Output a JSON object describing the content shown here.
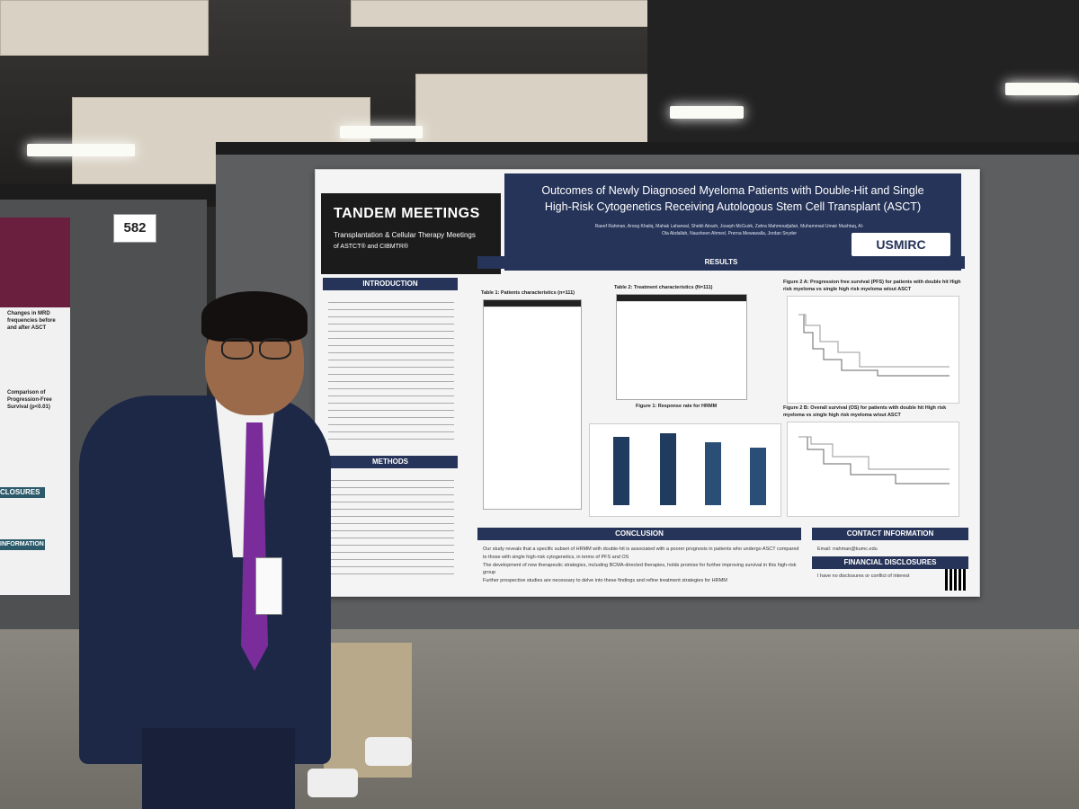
{
  "booth_number": "582",
  "logo": {
    "title": "TANDEM MEETINGS",
    "subtitle": "Transplantation & Cellular Therapy Meetings",
    "subtitle2": "of ASTCT® and CIBMTR®"
  },
  "poster": {
    "title_line1": "Outcomes of Newly Diagnosed Myeloma Patients with Double-Hit and Single",
    "title_line2": "High-Risk Cytogenetics Receiving Autologous Stem Cell Transplant (ASCT)",
    "authors": "Raeef Rahman, Aroog Khaliq, Mahak Laharwal, Shebli Atrash, Joseph McGuirk, Zahra Mahmoudjafari, Muhammad Umair Mushtaq, Al-Ola Abdallah, Nausheen Ahmed, Prerna Mewawalla, Jordan Snyder",
    "org_logo": "USMIRC",
    "sections": {
      "introduction": "INTRODUCTION",
      "methods": "METHODS",
      "results": "RESULTS",
      "conclusion": "CONCLUSION",
      "contact": "CONTACT INFORMATION",
      "disclosures": "FINANCIAL DISCLOSURES"
    },
    "tables": {
      "t1": "Table 1: Patients characteristics (n=111)",
      "t2": "Table 2: Treatment characteristics (N=111)"
    },
    "figures": {
      "fig1": "Figure 1: Response rate for HRMM",
      "fig2a": "Figure 2 A: Progression free survival (PFS) for patients with double hit High risk myeloma vs single high risk myeloma w/out ASCT",
      "fig2b": "Figure 2 B: Overall survival (OS) for patients with double hit High risk myeloma vs single high risk myeloma w/out ASCT"
    },
    "conclusion_points": [
      "Our study reveals that a specific subset of HRMM with double-hit is associated with a poorer prognosis in patients who undergo ASCT compared to those with single high-risk cytogenetics, in terms of PFS and OS",
      "The development of new therapeutic strategies, including BCMA-directed therapies, holds promise for further improving survival in this high-risk group",
      "Further prospective studies are necessary to delve into these findings and refine treatment strategies for HRMM"
    ],
    "contact_email": "Email: rrahman@kumc.edu",
    "disclosure_text": "I have no disclosures or conflict of interest"
  },
  "left_poster": {
    "header": "Changes in MRD frequencies before and after ASCT",
    "comparison": "Comparison of Progression-Free Survival (p<0.01)",
    "closures": "CLOSURES",
    "information": "INFORMATION"
  },
  "colors": {
    "poster_navy": "#263459",
    "suit": "#1d2847",
    "tie": "#7a2d9a"
  }
}
